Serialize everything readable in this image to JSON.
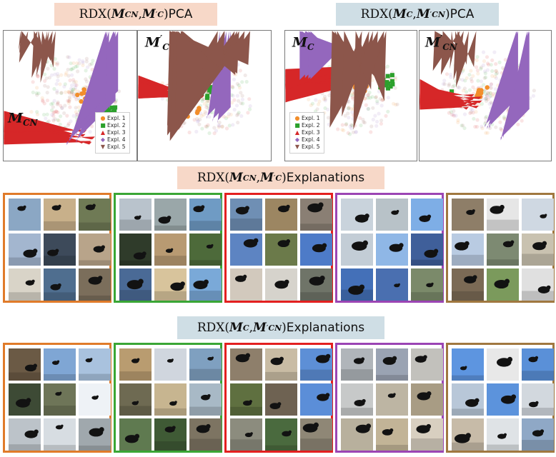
{
  "pca_titles": {
    "left": {
      "prefix": "RDX(",
      "m1": "M",
      "m1_sub": "CN",
      "sep": ", ",
      "m2": "M",
      "m2_prime": "′",
      "m2_sub": "C",
      "suffix": ")",
      "tail": " PCA"
    },
    "right": {
      "prefix": "RDX(",
      "m1": "M",
      "m1_sub": "C",
      "sep": ", ",
      "m2": "M",
      "m2_prime": "′",
      "m2_sub": "CN",
      "suffix": ")",
      "tail": " PCA"
    }
  },
  "panel_labels": {
    "p1": {
      "m": "M",
      "sub": "CN",
      "prime": ""
    },
    "p2": {
      "m": "M",
      "sub": "C",
      "prime": "′"
    },
    "p3": {
      "m": "M",
      "sub": "C",
      "prime": ""
    },
    "p4": {
      "m": "M",
      "sub": "CN",
      "prime": "′"
    }
  },
  "legend": {
    "items": [
      {
        "label": "Expl. 1",
        "marker": "●",
        "color": "#f28e2b"
      },
      {
        "label": "Expl. 2",
        "marker": "■",
        "color": "#2ca02c"
      },
      {
        "label": "Expl. 3",
        "marker": "▲",
        "color": "#d62728"
      },
      {
        "label": "Expl. 4",
        "marker": "◆",
        "color": "#9467bd"
      },
      {
        "label": "Expl. 5",
        "marker": "▼",
        "color": "#8c564b"
      }
    ]
  },
  "explanation_titles": {
    "row1": {
      "prefix": "RDX(",
      "m1": "M",
      "m1_sub": "CN",
      "sep": ", ",
      "m2": "M",
      "m2_prime": "′",
      "m2_sub": "C",
      "suffix": ")",
      "tail": " Explanations"
    },
    "row2": {
      "prefix": "RDX(",
      "m1": "M",
      "m1_sub": "C",
      "sep": ", ",
      "m2": "M",
      "m2_prime": "′",
      "m2_sub": "CN",
      "suffix": ")",
      "tail": " Explanations"
    }
  },
  "group_colors": [
    "#e07b2a",
    "#3aa635",
    "#e32020",
    "#9b45b4",
    "#a07840"
  ]
}
